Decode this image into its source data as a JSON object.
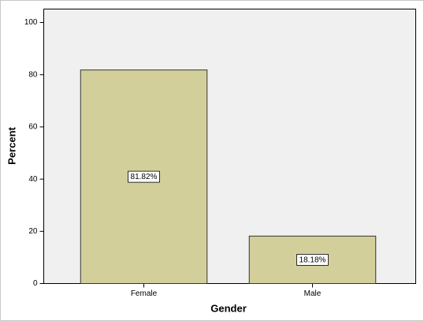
{
  "chart_data": {
    "type": "bar",
    "x_label": "Gender",
    "y_label": "Percent",
    "categories": [
      "Female",
      "Male"
    ],
    "values": [
      81.82,
      18.18
    ],
    "value_labels": [
      "81.82%",
      "18.18%"
    ],
    "color": "#d3cf9b",
    "ylim": [
      0,
      105
    ],
    "yticks": [
      0,
      20,
      40,
      60,
      80,
      100
    ]
  }
}
